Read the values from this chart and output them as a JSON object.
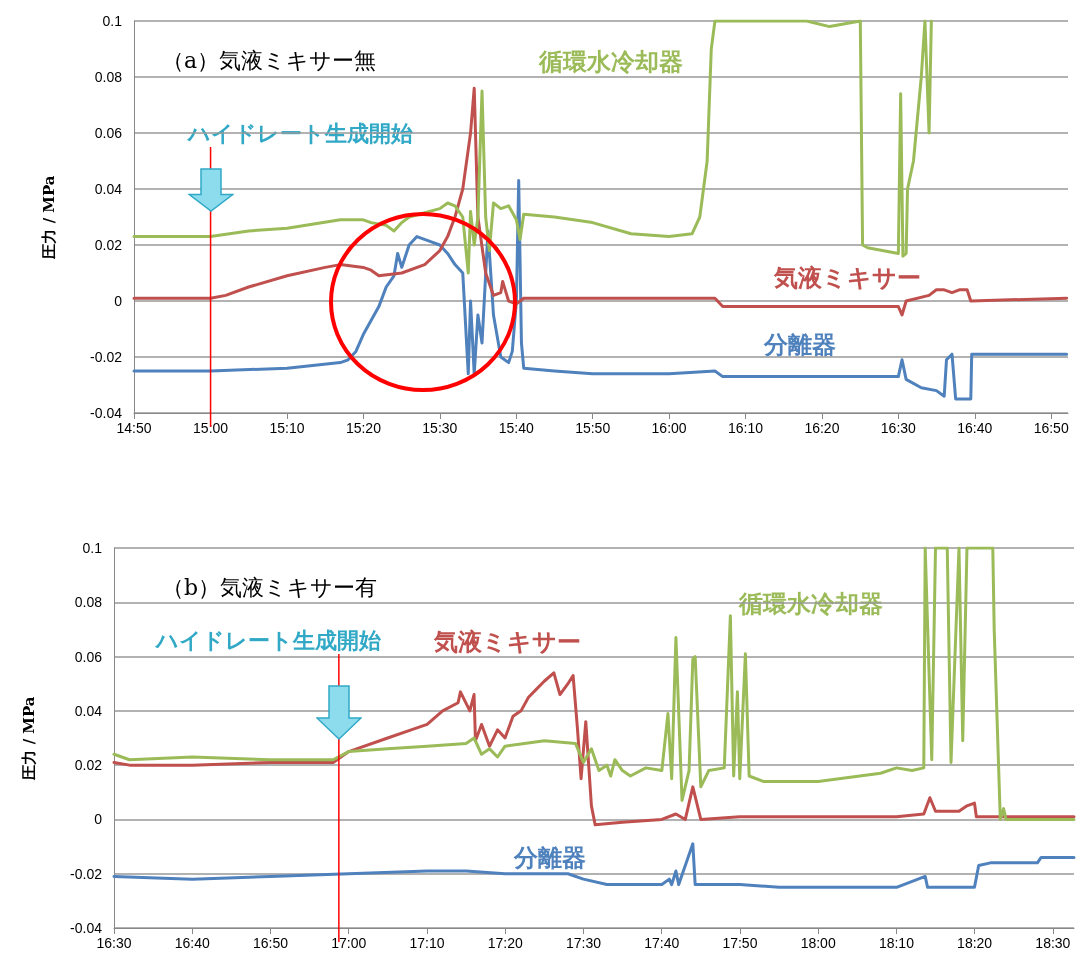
{
  "chart_data": [
    {
      "type": "line",
      "title": "（a）気液ミキサー無",
      "ylabel": "圧力 / MPa",
      "grid": "y",
      "xlim": [
        14.833,
        16.87
      ],
      "xticks": [
        {
          "value": 14.833,
          "label": "14:50"
        },
        {
          "value": 15,
          "label": "15:00"
        },
        {
          "value": 15.1667,
          "label": "15:10"
        },
        {
          "value": 15.3333,
          "label": "15:20"
        },
        {
          "value": 15.5,
          "label": "15:30"
        },
        {
          "value": 15.6667,
          "label": "15:40"
        },
        {
          "value": 15.8333,
          "label": "15:50"
        },
        {
          "value": 16,
          "label": "16:00"
        },
        {
          "value": 16.1667,
          "label": "16:10"
        },
        {
          "value": 16.3333,
          "label": "16:20"
        },
        {
          "value": 16.5,
          "label": "16:30"
        },
        {
          "value": 16.6667,
          "label": "16:40"
        },
        {
          "value": 16.8333,
          "label": "16:50"
        }
      ],
      "ylim": [
        -0.04,
        0.1
      ],
      "yticks": [
        -0.04,
        -0.02,
        0,
        0.02,
        0.04,
        0.06,
        0.08,
        0.1
      ],
      "ref_lines": [
        {
          "axis": "x",
          "value": 15,
          "label": "ハイドレート生成開始",
          "color": "#ff0000"
        }
      ],
      "series": [
        {
          "name": "循環水冷却器",
          "color": "#9bbb59",
          "x": [
            14.833,
            15.0,
            15.083,
            15.167,
            15.283,
            15.333,
            15.35,
            15.383,
            15.4,
            15.417,
            15.433,
            15.5,
            15.517,
            15.533,
            15.55,
            15.562,
            15.567,
            15.575,
            15.583,
            15.592,
            15.6,
            15.608,
            15.617,
            15.633,
            15.65,
            15.667,
            15.675,
            15.683,
            15.75,
            15.833,
            15.917,
            16.0,
            16.05,
            16.067,
            16.083,
            16.092,
            16.1,
            16.3,
            16.35,
            16.417,
            16.422,
            16.433,
            16.5,
            16.505,
            16.51,
            16.517,
            16.52,
            16.533,
            16.55,
            16.558,
            16.567,
            16.572
          ],
          "values": [
            0.023,
            0.023,
            0.025,
            0.026,
            0.029,
            0.029,
            0.028,
            0.027,
            0.025,
            0.028,
            0.03,
            0.033,
            0.035,
            0.034,
            0.03,
            0.01,
            0.032,
            0.02,
            0.03,
            0.075,
            0.03,
            0.018,
            0.035,
            0.033,
            0.034,
            0.029,
            0.022,
            0.031,
            0.03,
            0.028,
            0.024,
            0.023,
            0.024,
            0.03,
            0.05,
            0.09,
            0.1,
            0.1,
            0.098,
            0.1,
            0.02,
            0.019,
            0.017,
            0.074,
            0.016,
            0.017,
            0.04,
            0.05,
            0.08,
            0.1,
            0.06,
            0.1
          ]
        },
        {
          "name": "気液ミキサー",
          "color": "#c0504d",
          "x": [
            14.833,
            15.0,
            15.033,
            15.083,
            15.167,
            15.25,
            15.283,
            15.333,
            15.35,
            15.367,
            15.417,
            15.467,
            15.5,
            15.517,
            15.533,
            15.55,
            15.567,
            15.575,
            15.583,
            15.6,
            15.617,
            15.633,
            15.637,
            15.65,
            15.667,
            15.683,
            16.0,
            16.1,
            16.117,
            16.5,
            16.508,
            16.517,
            16.567,
            16.583,
            16.6,
            16.617,
            16.633,
            16.65,
            16.658,
            16.867
          ],
          "values": [
            0.001,
            0.001,
            0.002,
            0.005,
            0.009,
            0.012,
            0.013,
            0.012,
            0.011,
            0.009,
            0.01,
            0.013,
            0.018,
            0.023,
            0.03,
            0.04,
            0.06,
            0.076,
            0.03,
            0.01,
            0.002,
            0.003,
            0.007,
            0,
            -0.001,
            0.001,
            0.001,
            0.001,
            -0.002,
            -0.002,
            -0.005,
            0,
            0.002,
            0.004,
            0.004,
            0.003,
            0.004,
            0.004,
            0,
            0.001
          ]
        },
        {
          "name": "分離器",
          "color": "#4f81bd",
          "x": [
            14.833,
            15.0,
            15.167,
            15.283,
            15.3,
            15.317,
            15.333,
            15.35,
            15.367,
            15.383,
            15.4,
            15.408,
            15.417,
            15.433,
            15.45,
            15.483,
            15.5,
            15.517,
            15.533,
            15.55,
            15.562,
            15.567,
            15.575,
            15.583,
            15.592,
            15.605,
            15.617,
            15.633,
            15.65,
            15.658,
            15.667,
            15.672,
            15.678,
            15.683,
            15.75,
            15.833,
            16.0,
            16.1,
            16.117,
            16.5,
            16.508,
            16.517,
            16.55,
            16.583,
            16.6,
            16.605,
            16.617,
            16.625,
            16.658,
            16.66,
            16.867
          ],
          "values": [
            -0.025,
            -0.025,
            -0.024,
            -0.022,
            -0.021,
            -0.018,
            -0.012,
            -0.007,
            -0.002,
            0.005,
            0.009,
            0.017,
            0.012,
            0.02,
            0.023,
            0.021,
            0.02,
            0.017,
            0.013,
            0.01,
            -0.026,
            0,
            -0.026,
            -0.005,
            -0.015,
            0.025,
            -0.005,
            -0.02,
            -0.022,
            -0.018,
            0,
            0.043,
            -0.015,
            -0.024,
            -0.025,
            -0.026,
            -0.026,
            -0.025,
            -0.027,
            -0.027,
            -0.021,
            -0.028,
            -0.031,
            -0.032,
            -0.034,
            -0.021,
            -0.019,
            -0.035,
            -0.035,
            -0.019,
            -0.019
          ]
        }
      ]
    },
    {
      "type": "line",
      "title": "（b）気液ミキサー有",
      "ylabel": "圧力 / MPa",
      "grid": "y",
      "xlim": [
        16.5,
        18.545
      ],
      "xticks": [
        {
          "value": 16.5,
          "label": "16:30"
        },
        {
          "value": 16.6667,
          "label": "16:40"
        },
        {
          "value": 16.8333,
          "label": "16:50"
        },
        {
          "value": 17,
          "label": "17:00"
        },
        {
          "value": 17.1667,
          "label": "17:10"
        },
        {
          "value": 17.3333,
          "label": "17:20"
        },
        {
          "value": 17.5,
          "label": "17:30"
        },
        {
          "value": 17.6667,
          "label": "17:40"
        },
        {
          "value": 17.8333,
          "label": "17:50"
        },
        {
          "value": 18,
          "label": "18:00"
        },
        {
          "value": 18.1667,
          "label": "18:10"
        },
        {
          "value": 18.3333,
          "label": "18:20"
        },
        {
          "value": 18.5,
          "label": "18:30"
        }
      ],
      "ylim": [
        -0.04,
        0.1
      ],
      "yticks": [
        -0.04,
        -0.02,
        0,
        0.02,
        0.04,
        0.06,
        0.08,
        0.1
      ],
      "ref_lines": [
        {
          "axis": "x",
          "value": 16.979,
          "label": "ハイドレート生成開始",
          "color": "#ff0000"
        }
      ],
      "series": [
        {
          "name": "循環水冷却器",
          "color": "#9bbb59",
          "x": [
            16.5,
            16.533,
            16.667,
            16.833,
            16.967,
            17.0,
            17.083,
            17.167,
            17.25,
            17.267,
            17.283,
            17.3,
            17.317,
            17.333,
            17.417,
            17.483,
            17.5,
            17.517,
            17.533,
            17.55,
            17.558,
            17.567,
            17.583,
            17.6,
            17.633,
            17.667,
            17.68,
            17.688,
            17.697,
            17.71,
            17.725,
            17.733,
            17.738,
            17.75,
            17.767,
            17.8,
            17.813,
            17.82,
            17.828,
            17.833,
            17.845,
            17.853,
            17.883,
            18.0,
            18.133,
            18.167,
            18.2,
            18.225,
            18.228,
            18.242,
            18.25,
            18.275,
            18.283,
            18.3,
            18.308,
            18.317,
            18.372,
            18.375,
            18.388,
            18.395,
            18.4,
            18.545
          ],
          "values": [
            0.024,
            0.022,
            0.023,
            0.022,
            0.022,
            0.025,
            0.026,
            0.027,
            0.028,
            0.03,
            0.024,
            0.026,
            0.023,
            0.027,
            0.029,
            0.028,
            0.021,
            0.026,
            0.018,
            0.02,
            0.016,
            0.022,
            0.018,
            0.016,
            0.019,
            0.018,
            0.039,
            0.015,
            0.067,
            0.007,
            0.018,
            0.059,
            0.06,
            0.012,
            0.018,
            0.019,
            0.075,
            0.016,
            0.047,
            0.015,
            0.061,
            0.016,
            0.014,
            0.014,
            0.017,
            0.019,
            0.018,
            0.019,
            0.1,
            0.022,
            0.1,
            0.1,
            0.021,
            0.1,
            0.029,
            0.1,
            0.1,
            0.07,
            0,
            0.004,
            0,
            0
          ]
        },
        {
          "name": "気液ミキサー",
          "color": "#c0504d",
          "x": [
            16.5,
            16.533,
            16.667,
            16.833,
            16.967,
            17.0,
            17.083,
            17.133,
            17.167,
            17.2,
            17.233,
            17.238,
            17.258,
            17.267,
            17.27,
            17.283,
            17.3,
            17.317,
            17.333,
            17.35,
            17.367,
            17.383,
            17.4,
            17.417,
            17.437,
            17.45,
            17.467,
            17.478,
            17.487,
            17.495,
            17.505,
            17.517,
            17.525,
            17.583,
            17.667,
            17.697,
            17.717,
            17.733,
            17.75,
            17.833,
            18.0,
            18.167,
            18.225,
            18.238,
            18.25,
            18.3,
            18.317,
            18.333,
            18.337,
            18.545
          ],
          "values": [
            0.021,
            0.02,
            0.02,
            0.021,
            0.021,
            0.025,
            0.03,
            0.033,
            0.035,
            0.04,
            0.043,
            0.047,
            0.04,
            0.046,
            0.029,
            0.035,
            0.027,
            0.033,
            0.03,
            0.038,
            0.04,
            0.045,
            0.048,
            0.051,
            0.054,
            0.046,
            0.05,
            0.053,
            0.034,
            0.015,
            0.036,
            0.005,
            -0.002,
            -0.001,
            0,
            0.002,
            0,
            0.012,
            0,
            0.001,
            0.001,
            0.001,
            0.002,
            0.008,
            0.003,
            0.003,
            0.005,
            0.006,
            0.001,
            0.001
          ]
        },
        {
          "name": "分離器",
          "color": "#4f81bd",
          "x": [
            16.5,
            16.667,
            16.833,
            17.0,
            17.167,
            17.25,
            17.333,
            17.467,
            17.5,
            17.55,
            17.667,
            17.683,
            17.688,
            17.697,
            17.703,
            17.733,
            17.738,
            17.833,
            17.917,
            18.167,
            18.228,
            18.233,
            18.333,
            18.342,
            18.367,
            18.467,
            18.475,
            18.545
          ],
          "values": [
            -0.021,
            -0.022,
            -0.021,
            -0.02,
            -0.019,
            -0.019,
            -0.02,
            -0.02,
            -0.022,
            -0.024,
            -0.024,
            -0.022,
            -0.024,
            -0.019,
            -0.024,
            -0.009,
            -0.024,
            -0.024,
            -0.025,
            -0.025,
            -0.021,
            -0.025,
            -0.025,
            -0.017,
            -0.016,
            -0.016,
            -0.014,
            -0.014
          ]
        }
      ]
    }
  ]
}
